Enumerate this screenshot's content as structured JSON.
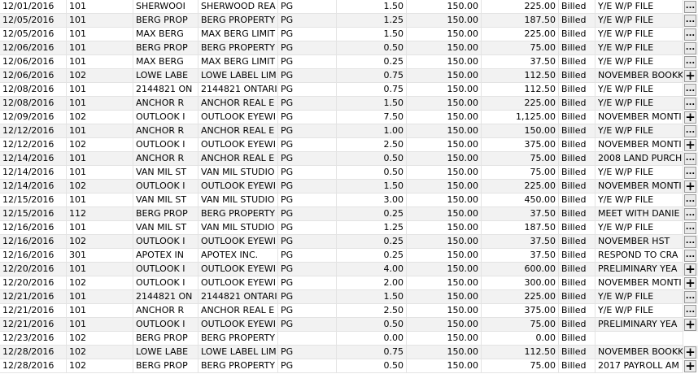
{
  "table": {
    "rows": [
      {
        "date": "12/01/2016",
        "code": "101",
        "client_short": "SHERWOOI",
        "client_full": "SHERWOOD REA",
        "init": "PG",
        "hours": "1.50",
        "rate": "150.00",
        "amount": "225.00",
        "status": "Billed",
        "desc": "Y/E W/P FILE",
        "btn": "..."
      },
      {
        "date": "12/05/2016",
        "code": "101",
        "client_short": "BERG PROP",
        "client_full": "BERG PROPERTY",
        "init": "PG",
        "hours": "1.25",
        "rate": "150.00",
        "amount": "187.50",
        "status": "Billed",
        "desc": "Y/E W/P FILE",
        "btn": "..."
      },
      {
        "date": "12/05/2016",
        "code": "101",
        "client_short": "MAX BERG",
        "client_full": "MAX BERG LIMIT",
        "init": "PG",
        "hours": "1.50",
        "rate": "150.00",
        "amount": "225.00",
        "status": "Billed",
        "desc": "Y/E W/P FILE",
        "btn": "..."
      },
      {
        "date": "12/06/2016",
        "code": "101",
        "client_short": "BERG PROP",
        "client_full": "BERG PROPERTY",
        "init": "PG",
        "hours": "0.50",
        "rate": "150.00",
        "amount": "75.00",
        "status": "Billed",
        "desc": "Y/E W/P FILE",
        "btn": "..."
      },
      {
        "date": "12/06/2016",
        "code": "101",
        "client_short": "MAX BERG",
        "client_full": "MAX BERG LIMIT",
        "init": "PG",
        "hours": "0.25",
        "rate": "150.00",
        "amount": "37.50",
        "status": "Billed",
        "desc": "Y/E W/P FILE",
        "btn": "..."
      },
      {
        "date": "12/06/2016",
        "code": "102",
        "client_short": "LOWE LABE",
        "client_full": "LOWE LABEL LIM",
        "init": "PG",
        "hours": "0.75",
        "rate": "150.00",
        "amount": "112.50",
        "status": "Billed",
        "desc": "NOVEMBER BOOKK",
        "btn": "+"
      },
      {
        "date": "12/08/2016",
        "code": "101",
        "client_short": "2144821 ON",
        "client_full": "2144821 ONTARI",
        "init": "PG",
        "hours": "0.75",
        "rate": "150.00",
        "amount": "112.50",
        "status": "Billed",
        "desc": "Y/E W/P FILE",
        "btn": "..."
      },
      {
        "date": "12/08/2016",
        "code": "101",
        "client_short": "ANCHOR R",
        "client_full": "ANCHOR REAL E",
        "init": "PG",
        "hours": "1.50",
        "rate": "150.00",
        "amount": "225.00",
        "status": "Billed",
        "desc": "Y/E W/P FILE",
        "btn": "..."
      },
      {
        "date": "12/09/2016",
        "code": "102",
        "client_short": "OUTLOOK I",
        "client_full": "OUTLOOK EYEWI",
        "init": "PG",
        "hours": "7.50",
        "rate": "150.00",
        "amount": "1,125.00",
        "status": "Billed",
        "desc": "NOVEMBER MONTI",
        "btn": "+"
      },
      {
        "date": "12/12/2016",
        "code": "101",
        "client_short": "ANCHOR R",
        "client_full": "ANCHOR REAL E",
        "init": "PG",
        "hours": "1.00",
        "rate": "150.00",
        "amount": "150.00",
        "status": "Billed",
        "desc": "Y/E W/P FILE",
        "btn": "..."
      },
      {
        "date": "12/12/2016",
        "code": "102",
        "client_short": "OUTLOOK I",
        "client_full": "OUTLOOK EYEWI",
        "init": "PG",
        "hours": "2.50",
        "rate": "150.00",
        "amount": "375.00",
        "status": "Billed",
        "desc": "NOVEMBER MONTI",
        "btn": "+"
      },
      {
        "date": "12/14/2016",
        "code": "101",
        "client_short": "ANCHOR R",
        "client_full": "ANCHOR REAL E",
        "init": "PG",
        "hours": "0.50",
        "rate": "150.00",
        "amount": "75.00",
        "status": "Billed",
        "desc": "2008 LAND PURCH",
        "btn": "..."
      },
      {
        "date": "12/14/2016",
        "code": "101",
        "client_short": "VAN MIL ST",
        "client_full": "VAN MIL STUDIO",
        "init": "PG",
        "hours": "0.50",
        "rate": "150.00",
        "amount": "75.00",
        "status": "Billed",
        "desc": "Y/E W/P FILE",
        "btn": "..."
      },
      {
        "date": "12/14/2016",
        "code": "102",
        "client_short": "OUTLOOK I",
        "client_full": "OUTLOOK EYEWI",
        "init": "PG",
        "hours": "1.50",
        "rate": "150.00",
        "amount": "225.00",
        "status": "Billed",
        "desc": "NOVEMBER MONTI",
        "btn": "+"
      },
      {
        "date": "12/15/2016",
        "code": "101",
        "client_short": "VAN MIL ST",
        "client_full": "VAN MIL STUDIO",
        "init": "PG",
        "hours": "3.00",
        "rate": "150.00",
        "amount": "450.00",
        "status": "Billed",
        "desc": "Y/E W/P FILE",
        "btn": "..."
      },
      {
        "date": "12/15/2016",
        "code": "112",
        "client_short": "BERG PROP",
        "client_full": "BERG PROPERTY",
        "init": "PG",
        "hours": "0.25",
        "rate": "150.00",
        "amount": "37.50",
        "status": "Billed",
        "desc": "MEET WITH DANIE",
        "btn": "..."
      },
      {
        "date": "12/16/2016",
        "code": "101",
        "client_short": "VAN MIL ST",
        "client_full": "VAN MIL STUDIO",
        "init": "PG",
        "hours": "1.25",
        "rate": "150.00",
        "amount": "187.50",
        "status": "Billed",
        "desc": "Y/E W/P FILE",
        "btn": "..."
      },
      {
        "date": "12/16/2016",
        "code": "102",
        "client_short": "OUTLOOK I",
        "client_full": "OUTLOOK EYEWI",
        "init": "PG",
        "hours": "0.25",
        "rate": "150.00",
        "amount": "37.50",
        "status": "Billed",
        "desc": "NOVEMBER HST",
        "btn": "..."
      },
      {
        "date": "12/16/2016",
        "code": "301",
        "client_short": "APOTEX IN",
        "client_full": "APOTEX INC.",
        "init": "PG",
        "hours": "0.25",
        "rate": "150.00",
        "amount": "37.50",
        "status": "Billed",
        "desc": "RESPOND TO CRA",
        "btn": "..."
      },
      {
        "date": "12/20/2016",
        "code": "101",
        "client_short": "OUTLOOK I",
        "client_full": "OUTLOOK EYEWI",
        "init": "PG",
        "hours": "4.00",
        "rate": "150.00",
        "amount": "600.00",
        "status": "Billed",
        "desc": "PRELIMINARY YEA",
        "btn": "+"
      },
      {
        "date": "12/20/2016",
        "code": "102",
        "client_short": "OUTLOOK I",
        "client_full": "OUTLOOK EYEWI",
        "init": "PG",
        "hours": "2.00",
        "rate": "150.00",
        "amount": "300.00",
        "status": "Billed",
        "desc": "NOVEMBER MONTI",
        "btn": "+"
      },
      {
        "date": "12/21/2016",
        "code": "101",
        "client_short": "2144821 ON",
        "client_full": "2144821 ONTARI",
        "init": "PG",
        "hours": "1.50",
        "rate": "150.00",
        "amount": "225.00",
        "status": "Billed",
        "desc": "Y/E W/P FILE",
        "btn": "..."
      },
      {
        "date": "12/21/2016",
        "code": "101",
        "client_short": "ANCHOR R",
        "client_full": "ANCHOR REAL E",
        "init": "PG",
        "hours": "2.50",
        "rate": "150.00",
        "amount": "375.00",
        "status": "Billed",
        "desc": "Y/E W/P FILE",
        "btn": "..."
      },
      {
        "date": "12/21/2016",
        "code": "101",
        "client_short": "OUTLOOK I",
        "client_full": "OUTLOOK EYEWI",
        "init": "PG",
        "hours": "0.50",
        "rate": "150.00",
        "amount": "75.00",
        "status": "Billed",
        "desc": "PRELIMINARY YEA",
        "btn": "+"
      },
      {
        "date": "12/23/2016",
        "code": "102",
        "client_short": "BERG PROP",
        "client_full": "BERG PROPERTY",
        "init": "",
        "hours": "0.00",
        "rate": "150.00",
        "amount": "0.00",
        "status": "Billed",
        "desc": "",
        "btn": ""
      },
      {
        "date": "12/28/2016",
        "code": "102",
        "client_short": "LOWE LABE",
        "client_full": "LOWE LABEL LIM",
        "init": "PG",
        "hours": "0.75",
        "rate": "150.00",
        "amount": "112.50",
        "status": "Billed",
        "desc": "NOVEMBER BOOKK",
        "btn": "+"
      },
      {
        "date": "12/28/2016",
        "code": "102",
        "client_short": "BERG PROP",
        "client_full": "BERG PROPERTY",
        "init": "PG",
        "hours": "0.50",
        "rate": "150.00",
        "amount": "75.00",
        "status": "Billed",
        "desc": "2017 PAYROLL AM",
        "btn": "+"
      }
    ]
  }
}
